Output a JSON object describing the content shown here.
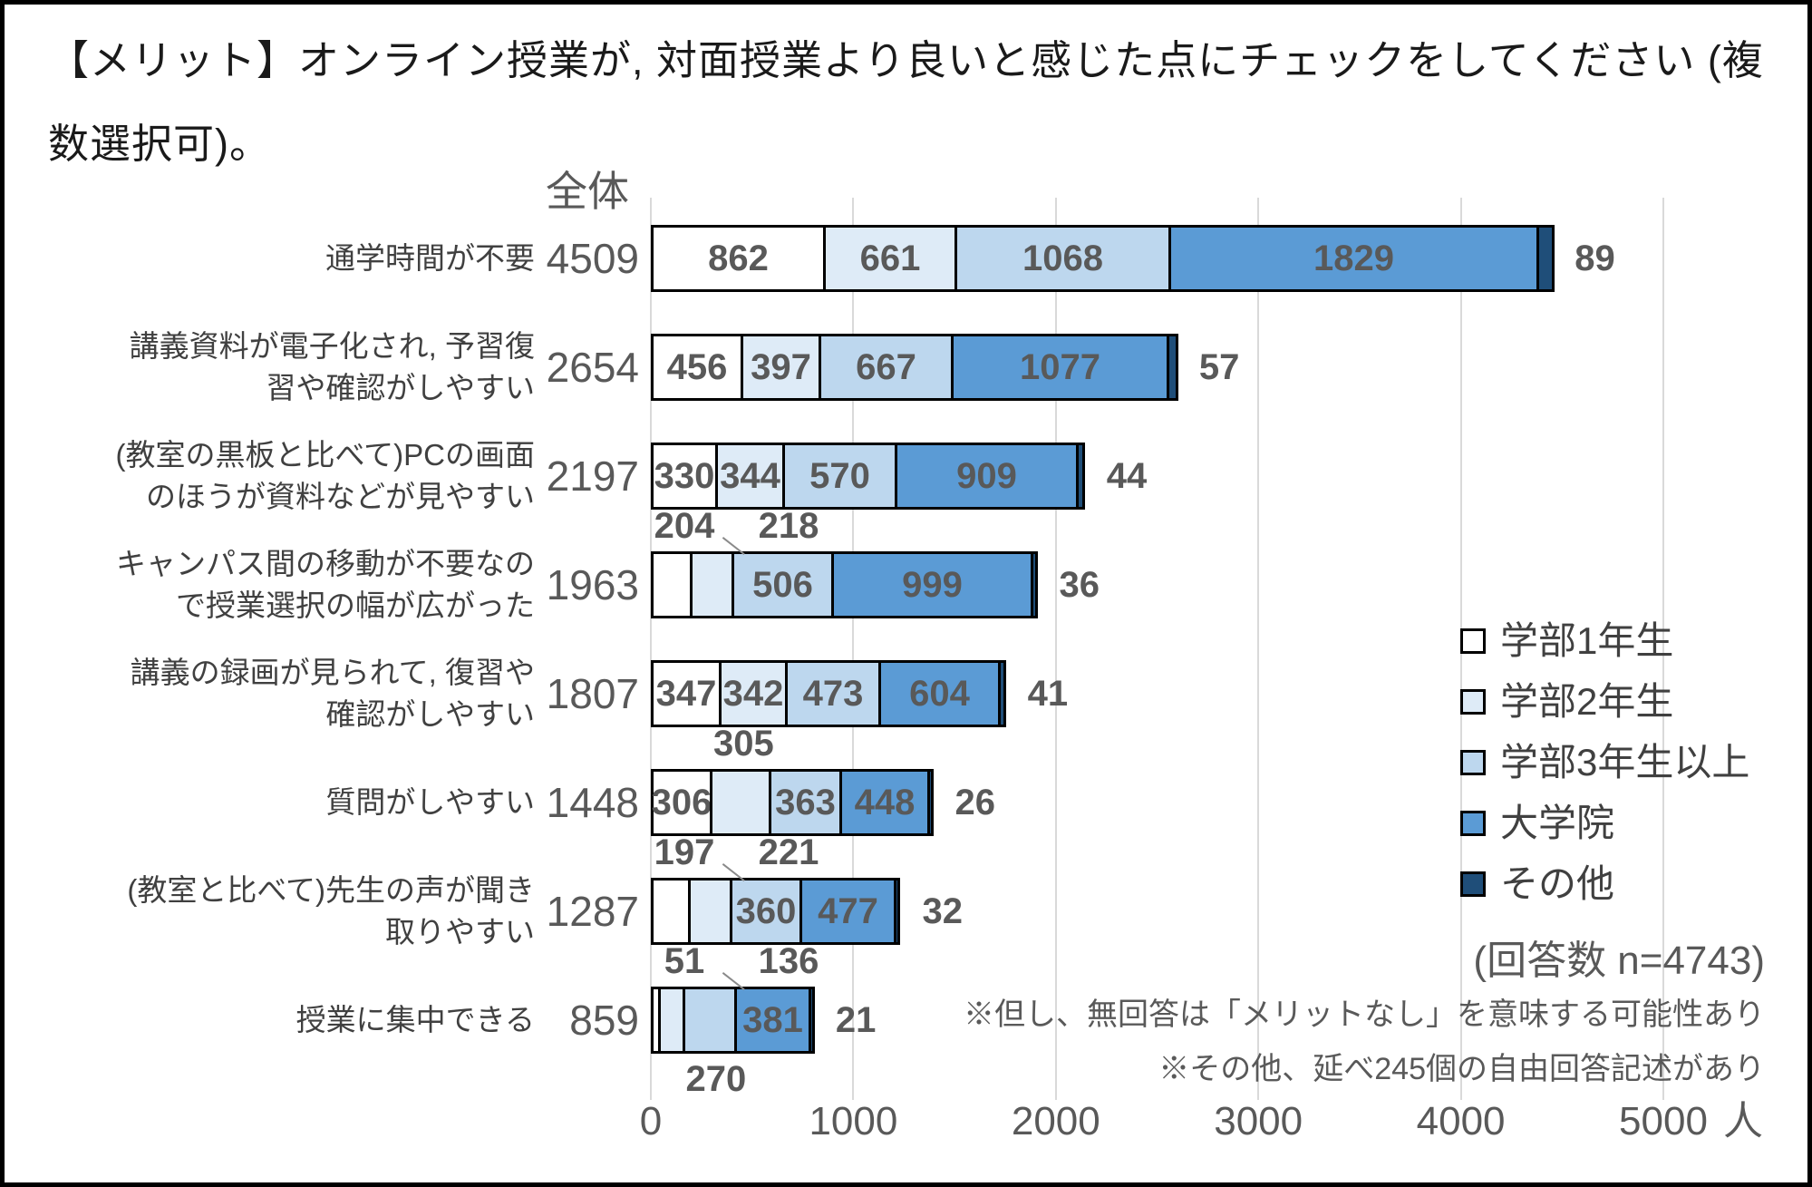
{
  "title": "【メリット】オンライン授業が, 対面授業より良いと感じた点にチェックをしてください (複数選択可)。",
  "chart_data": {
    "type": "bar",
    "subtype": "horizontal-stacked",
    "total_header": "全体",
    "series": [
      {
        "name": "学部1年生",
        "color": "#FFFFFF"
      },
      {
        "name": "学部2年生",
        "color": "#DEEBF7"
      },
      {
        "name": "学部3年生以上",
        "color": "#BDD7EE"
      },
      {
        "name": "大学院",
        "color": "#5B9BD5"
      },
      {
        "name": "その他",
        "color": "#1F4E79"
      }
    ],
    "rows": [
      {
        "label_lines": [
          "通学時間が不要"
        ],
        "total": 4509,
        "values": [
          862,
          661,
          1068,
          1829,
          89
        ],
        "label_pos": [
          "in",
          "in",
          "in",
          "in",
          "right"
        ]
      },
      {
        "label_lines": [
          "講義資料が電子化され, 予習復",
          "習や確認がしやすい"
        ],
        "total": 2654,
        "values": [
          456,
          397,
          667,
          1077,
          57
        ],
        "label_pos": [
          "in",
          "in",
          "in",
          "in",
          "right"
        ]
      },
      {
        "label_lines": [
          "(教室の黒板と比べて)PCの画面",
          "のほうが資料などが見やすい"
        ],
        "total": 2197,
        "values": [
          330,
          344,
          570,
          909,
          44
        ],
        "label_pos": [
          "in",
          "in",
          "in",
          "in",
          "right"
        ]
      },
      {
        "label_lines": [
          "キャンパス間の移動が不要なの",
          "で授業選択の幅が広がった"
        ],
        "total": 1963,
        "values": [
          204,
          218,
          506,
          999,
          36
        ],
        "label_pos": [
          "above",
          "above",
          "in",
          "in",
          "right"
        ]
      },
      {
        "label_lines": [
          "講義の録画が見られて, 復習や",
          "確認がしやすい"
        ],
        "total": 1807,
        "values": [
          347,
          342,
          473,
          604,
          41
        ],
        "label_pos": [
          "in",
          "in",
          "in",
          "in",
          "right"
        ]
      },
      {
        "label_lines": [
          "質問がしやすい"
        ],
        "total": 1448,
        "values": [
          306,
          305,
          363,
          448,
          26
        ],
        "label_pos": [
          "in",
          "above",
          "in",
          "in",
          "right"
        ]
      },
      {
        "label_lines": [
          "(教室と比べて)先生の声が聞き",
          "取りやすい"
        ],
        "total": 1287,
        "values": [
          197,
          221,
          360,
          477,
          32
        ],
        "label_pos": [
          "above",
          "above",
          "in",
          "in",
          "right"
        ]
      },
      {
        "label_lines": [
          "授業に集中できる"
        ],
        "total": 859,
        "values": [
          51,
          136,
          270,
          381,
          21
        ],
        "label_pos": [
          "above",
          "above",
          "below",
          "in",
          "right"
        ]
      }
    ],
    "x_axis": {
      "ticks": [
        "0",
        "1000",
        "2000",
        "3000",
        "4000",
        "5000"
      ],
      "tick_values": [
        0,
        1000,
        2000,
        3000,
        4000,
        5000
      ],
      "unit": "人",
      "max": 5000,
      "grid": true
    },
    "legend_position": "right",
    "annotations": {
      "respondents": "(回答数 n=4743)",
      "notes": [
        "※但し、無回答は「メリットなし」を意味する可能性あり",
        "※その他、延べ245個の自由回答記述があり"
      ]
    },
    "colors": {
      "segment_border": "#000000",
      "grid": "#D9D9D9",
      "value_text": "#595959",
      "category_text": "#404040",
      "title_text": "#1a1a1a",
      "background": "#FFFFFF",
      "frame": "#000000"
    }
  }
}
